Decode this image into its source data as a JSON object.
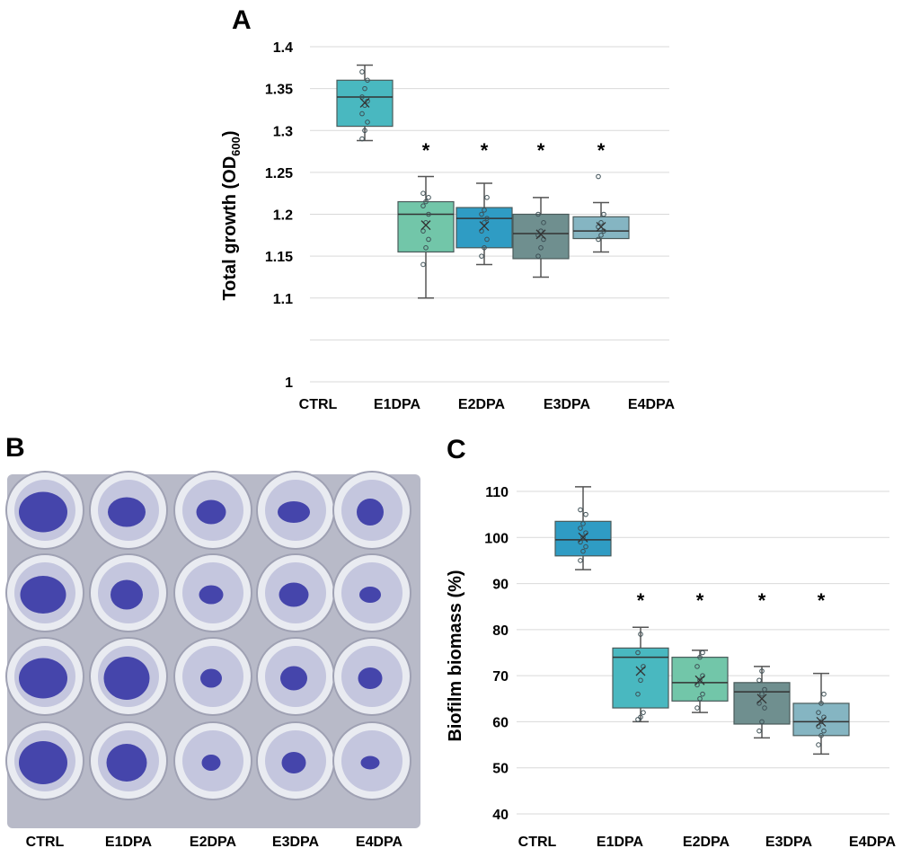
{
  "panels": {
    "a": "A",
    "b": "B",
    "c": "C"
  },
  "photo": {
    "well_colors": {
      "plate": "#b8bac8",
      "rim": "#e9ebf1",
      "interior": "#c4c6de",
      "stain": "#3a3aa6"
    },
    "categories": [
      "CTRL",
      "E1DPA",
      "E2DPA",
      "E3DPA",
      "E4DPA"
    ],
    "rows": 4
  },
  "chart_data": [
    {
      "type": "box",
      "ylabel": "Total growth (OD",
      "ylabel_sub": "600",
      "ylabel_end": ")",
      "ylim": [
        1.0,
        1.4
      ],
      "yticks": [
        1,
        1.05,
        1.1,
        1.15,
        1.2,
        1.25,
        1.3,
        1.35,
        1.4
      ],
      "ytick_labels": [
        "1",
        "",
        "1.1",
        "1.15",
        "1.2",
        "1.25",
        "1.3",
        "1.35",
        "1.4"
      ],
      "grid": true,
      "categories": [
        "CTRL",
        "E1DPA",
        "E2DPA",
        "E3DPA",
        "E4DPA"
      ],
      "significance": [
        "",
        "*",
        "*",
        "*",
        "*"
      ],
      "boxes": [
        {
          "color": "#49b8c0",
          "whisker_low": 1.288,
          "q1": 1.305,
          "median": 1.34,
          "q3": 1.36,
          "whisker_high": 1.378,
          "mean": 1.333,
          "points": [
            1.29,
            1.3,
            1.31,
            1.32,
            1.33,
            1.335,
            1.34,
            1.35,
            1.36,
            1.37
          ]
        },
        {
          "color": "#72c6a9",
          "whisker_low": 1.1,
          "q1": 1.155,
          "median": 1.2,
          "q3": 1.215,
          "whisker_high": 1.245,
          "mean": 1.187,
          "points": [
            1.14,
            1.16,
            1.17,
            1.18,
            1.19,
            1.2,
            1.21,
            1.215,
            1.22,
            1.225
          ]
        },
        {
          "color": "#2f9cc4",
          "whisker_low": 1.14,
          "q1": 1.16,
          "median": 1.195,
          "q3": 1.208,
          "whisker_high": 1.237,
          "mean": 1.186,
          "points": [
            1.15,
            1.16,
            1.17,
            1.18,
            1.19,
            1.195,
            1.2,
            1.205,
            1.22
          ]
        },
        {
          "color": "#6f8f8f",
          "whisker_low": 1.125,
          "q1": 1.147,
          "median": 1.177,
          "q3": 1.2,
          "whisker_high": 1.22,
          "mean": 1.176,
          "points": [
            1.15,
            1.16,
            1.17,
            1.175,
            1.18,
            1.19,
            1.2
          ]
        },
        {
          "color": "#85b5c2",
          "whisker_low": 1.155,
          "q1": 1.171,
          "median": 1.18,
          "q3": 1.197,
          "whisker_high": 1.214,
          "mean": 1.185,
          "points": [
            1.17,
            1.175,
            1.18,
            1.185,
            1.19,
            1.2,
            1.245
          ]
        }
      ]
    },
    {
      "type": "box",
      "ylabel": "Biofilm biomass (%)",
      "ylim": [
        40,
        110
      ],
      "yticks": [
        40,
        50,
        60,
        70,
        80,
        90,
        100,
        110
      ],
      "ytick_labels": [
        "40",
        "50",
        "60",
        "70",
        "80",
        "90",
        "100",
        "110"
      ],
      "grid": true,
      "categories": [
        "CTRL",
        "E1DPA",
        "E2DPA",
        "E3DPA",
        "E4DPA"
      ],
      "significance": [
        "",
        "*",
        "*",
        "*",
        "*"
      ],
      "boxes": [
        {
          "color": "#2f9cc4",
          "whisker_low": 93,
          "q1": 96,
          "median": 99.5,
          "q3": 103.5,
          "whisker_high": 111,
          "mean": 100,
          "points": [
            95,
            97,
            98,
            99,
            100,
            101,
            102,
            103,
            105,
            106
          ]
        },
        {
          "color": "#49b8c0",
          "whisker_low": 60,
          "q1": 63,
          "median": 74,
          "q3": 76,
          "whisker_high": 80.5,
          "mean": 71,
          "points": [
            60.5,
            61,
            62,
            66,
            69,
            72,
            75,
            79
          ]
        },
        {
          "color": "#72c6a9",
          "whisker_low": 62,
          "q1": 64.5,
          "median": 68.5,
          "q3": 74,
          "whisker_high": 75.5,
          "mean": 69,
          "points": [
            63,
            65,
            66,
            68,
            69,
            70,
            72,
            74,
            75
          ]
        },
        {
          "color": "#6f8f8f",
          "whisker_low": 56.5,
          "q1": 59.5,
          "median": 66.5,
          "q3": 68.5,
          "whisker_high": 72,
          "mean": 65,
          "points": [
            58,
            60,
            63,
            64,
            66,
            67,
            69,
            71
          ]
        },
        {
          "color": "#85b5c2",
          "whisker_low": 53,
          "q1": 57,
          "median": 60,
          "q3": 64,
          "whisker_high": 70.5,
          "mean": 60,
          "points": [
            55,
            57,
            58,
            59,
            60,
            61,
            62,
            64,
            66
          ]
        }
      ]
    }
  ]
}
